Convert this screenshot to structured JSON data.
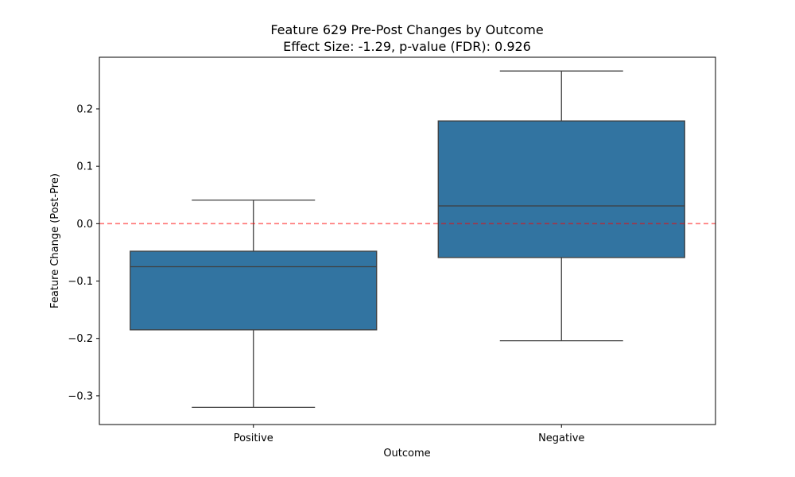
{
  "chart_data": {
    "type": "boxplot",
    "title": "Feature 629 Pre-Post Changes by Outcome",
    "subtitle": "Effect Size: -1.29, p-value (FDR): 0.926",
    "xlabel": "Outcome",
    "ylabel": "Feature Change (Post-Pre)",
    "ylim": [
      -0.35,
      0.29
    ],
    "yticks": [
      -0.3,
      -0.2,
      -0.1,
      0.0,
      0.1,
      0.2
    ],
    "ytick_labels": [
      "−0.3",
      "−0.2",
      "−0.1",
      "0.0",
      "0.1",
      "0.2"
    ],
    "categories": [
      "Positive",
      "Negative"
    ],
    "boxes": [
      {
        "category": "Positive",
        "whisker_low": -0.32,
        "q1": -0.185,
        "median": -0.075,
        "q3": -0.048,
        "whisker_high": 0.041
      },
      {
        "category": "Negative",
        "whisker_low": -0.204,
        "q1": -0.059,
        "median": 0.031,
        "q3": 0.179,
        "whisker_high": 0.266
      }
    ],
    "reference_line": {
      "y": 0.0,
      "style": "dashed",
      "color": "#ff0000",
      "opacity": 0.55
    },
    "box_color": "#3274a1",
    "line_color": "#3f3f3f",
    "grid": false
  }
}
